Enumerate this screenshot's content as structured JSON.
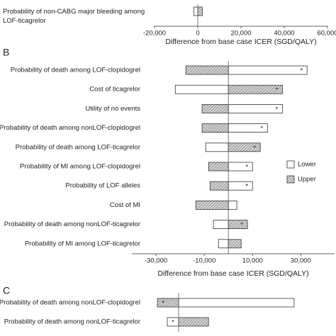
{
  "chart_data": [
    {
      "type": "bar",
      "orientation": "horizontal",
      "categories": [
        "Probability of non-CABG major bleeding among\nLOF-ticagrelor"
      ],
      "series": [
        {
          "name": "Lower",
          "color": "#ffffff",
          "values": [
            -1800
          ],
          "markers": [
            null
          ]
        },
        {
          "name": "Upper",
          "color": "#a0a0a0",
          "hatch": true,
          "values": [
            2100
          ],
          "markers": [
            null
          ]
        }
      ],
      "xlim": [
        -20000,
        60000
      ],
      "xticks": [
        {
          "value": -20000,
          "label": "-20,000"
        },
        0,
        {
          "value": 20000,
          "label": "20,000"
        },
        {
          "value": 40000,
          "label": "40,000"
        },
        {
          "value": 60000,
          "label": "60,000"
        }
      ],
      "xlabel": "Difference from base case ICER (SGD/QALY)"
    },
    {
      "type": "bar",
      "orientation": "horizontal",
      "panel": "B",
      "categories": [
        "Probability of death among LOF-clopidogrel",
        "Cost of ticagrelor",
        "Utility of no events",
        "Probability of death among nonLOF-clopidogrel",
        "Probability of death among LOF-ticagrelor",
        "Probability of MI among LOF-clopidogrel",
        "Probability of LOF alleles",
        "Cost of MI",
        "Probability of death among nonLOF-ticagrelor",
        "Probability of MI among LOF-ticagrelor"
      ],
      "series": [
        {
          "name": "Lower",
          "color": "#ffffff",
          "values": [
            32600,
            -22000,
            22400,
            16200,
            -9400,
            10000,
            10000,
            3500,
            -6200,
            -4100
          ],
          "markers": [
            "*",
            null,
            "*",
            "*",
            null,
            "*",
            "*",
            null,
            null,
            null
          ]
        },
        {
          "name": "Upper",
          "color": "#a0a0a0",
          "hatch": true,
          "values": [
            -17600,
            22400,
            -10900,
            -10900,
            13200,
            -8200,
            -7600,
            -13500,
            7900,
            5300
          ],
          "markers": [
            null,
            "*",
            null,
            null,
            "*",
            null,
            null,
            null,
            "*",
            null
          ]
        }
      ],
      "xlim": [
        -40000,
        44000
      ],
      "xticks": [
        {
          "value": -30000,
          "label": "-30,000"
        },
        {
          "value": -10000,
          "label": "-10,000"
        },
        {
          "value": 10000,
          "label": "10,000"
        },
        {
          "value": 30000,
          "label": "30,000"
        }
      ],
      "xlabel": "Difference from base case ICER (SGD/QALY)",
      "legend": "right"
    },
    {
      "type": "bar",
      "orientation": "horizontal",
      "panel": "C",
      "categories": [
        "Probability of death among nonLOF-clopidogrel",
        "Probability of death among nonLOF-ticagrelor"
      ],
      "series": [
        {
          "name": "Lower",
          "color": "#ffffff",
          "values": [
            47900,
            -4700
          ],
          "markers": [
            null,
            "*"
          ]
        },
        {
          "name": "Upper",
          "color": "#a0a0a0",
          "hatch": true,
          "values": [
            -8800,
            12400
          ],
          "markers": [
            "*",
            null
          ]
        }
      ],
      "xlim": [
        -15000,
        65000
      ]
    }
  ]
}
